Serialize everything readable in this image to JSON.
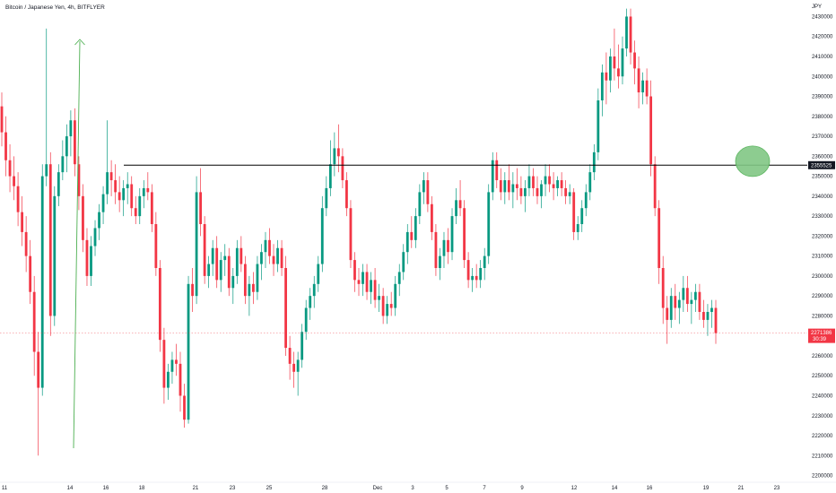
{
  "chart_data": {
    "type": "candlestick",
    "title": "Bitcoin / Japanese Yen, 4h, BITFLYER",
    "currency": "JPY",
    "y_ticks": [
      2200000,
      2210000,
      2220000,
      2230000,
      2240000,
      2250000,
      2260000,
      2270000,
      2280000,
      2290000,
      2300000,
      2310000,
      2320000,
      2330000,
      2340000,
      2350000,
      2360000,
      2370000,
      2380000,
      2390000,
      2400000,
      2410000,
      2420000,
      2430000
    ],
    "ylim": [
      2198000,
      2436500
    ],
    "x_ticks": [
      "11",
      "14",
      "16",
      "18",
      "21",
      "23",
      "25",
      "28",
      "Dec",
      "3",
      "5",
      "7",
      "9",
      "12",
      "14",
      "16",
      "19",
      "21",
      "23"
    ],
    "horizontal_line": {
      "value": 2355525,
      "label": "2355525",
      "color": "#000000"
    },
    "last_price": {
      "value": 2271386,
      "label": "2271386",
      "countdown": "30:39",
      "color": "#f23645"
    },
    "highlight_marker": {
      "shape": "ellipse",
      "color": "#81c784",
      "value": 2357500
    },
    "arrow_marker": {
      "direction": "up",
      "color": "#4caf50"
    },
    "colors": {
      "up": "#089981",
      "down": "#f23645"
    },
    "ohlc": [
      [
        2385000,
        2392000,
        2365000,
        2372000
      ],
      [
        2372000,
        2380000,
        2350000,
        2358000
      ],
      [
        2358000,
        2366000,
        2342000,
        2350000
      ],
      [
        2350000,
        2360000,
        2338000,
        2345000
      ],
      [
        2345000,
        2352000,
        2325000,
        2332000
      ],
      [
        2332000,
        2340000,
        2315000,
        2322000
      ],
      [
        2322000,
        2330000,
        2302000,
        2310000
      ],
      [
        2310000,
        2318000,
        2286000,
        2292000
      ],
      [
        2292000,
        2300000,
        2250000,
        2262000
      ],
      [
        2262000,
        2272000,
        2210000,
        2244000
      ],
      [
        2244000,
        2356000,
        2240000,
        2350000
      ],
      [
        2350000,
        2424000,
        2345000,
        2356000
      ],
      [
        2356000,
        2362000,
        2270000,
        2280000
      ],
      [
        2280000,
        2345000,
        2275000,
        2340000
      ],
      [
        2340000,
        2356000,
        2335000,
        2352000
      ],
      [
        2352000,
        2368000,
        2348000,
        2360000
      ],
      [
        2360000,
        2376000,
        2352000,
        2370000
      ],
      [
        2370000,
        2383000,
        2360000,
        2378000
      ],
      [
        2378000,
        2384000,
        2350000,
        2356000
      ],
      [
        2356000,
        2360000,
        2333000,
        2340000
      ],
      [
        2340000,
        2346000,
        2312000,
        2318000
      ],
      [
        2318000,
        2324000,
        2295000,
        2300000
      ],
      [
        2300000,
        2320000,
        2295000,
        2315000
      ],
      [
        2315000,
        2328000,
        2310000,
        2324000
      ],
      [
        2324000,
        2336000,
        2318000,
        2332000
      ],
      [
        2332000,
        2345000,
        2326000,
        2341000
      ],
      [
        2341000,
        2378000,
        2336000,
        2352000
      ],
      [
        2352000,
        2358000,
        2340000,
        2348000
      ],
      [
        2348000,
        2356000,
        2336000,
        2342000
      ],
      [
        2342000,
        2350000,
        2332000,
        2338000
      ],
      [
        2338000,
        2348000,
        2330000,
        2344000
      ],
      [
        2344000,
        2352000,
        2336000,
        2346000
      ],
      [
        2346000,
        2350000,
        2330000,
        2334000
      ],
      [
        2334000,
        2340000,
        2326000,
        2330000
      ],
      [
        2330000,
        2344000,
        2326000,
        2340000
      ],
      [
        2340000,
        2348000,
        2334000,
        2344000
      ],
      [
        2344000,
        2352000,
        2338000,
        2342000
      ],
      [
        2342000,
        2346000,
        2322000,
        2326000
      ],
      [
        2326000,
        2332000,
        2300000,
        2304000
      ],
      [
        2304000,
        2308000,
        2262000,
        2268000
      ],
      [
        2268000,
        2274000,
        2236000,
        2244000
      ],
      [
        2244000,
        2256000,
        2238000,
        2252000
      ],
      [
        2252000,
        2262000,
        2246000,
        2258000
      ],
      [
        2258000,
        2266000,
        2250000,
        2256000
      ],
      [
        2256000,
        2262000,
        2232000,
        2240000
      ],
      [
        2240000,
        2246000,
        2224000,
        2228000
      ],
      [
        2228000,
        2300000,
        2226000,
        2296000
      ],
      [
        2296000,
        2304000,
        2282000,
        2290000
      ],
      [
        2290000,
        2350000,
        2286000,
        2342000
      ],
      [
        2342000,
        2354000,
        2320000,
        2326000
      ],
      [
        2326000,
        2330000,
        2296000,
        2300000
      ],
      [
        2300000,
        2310000,
        2294000,
        2306000
      ],
      [
        2306000,
        2318000,
        2300000,
        2314000
      ],
      [
        2314000,
        2320000,
        2294000,
        2298000
      ],
      [
        2298000,
        2312000,
        2292000,
        2308000
      ],
      [
        2308000,
        2316000,
        2300000,
        2310000
      ],
      [
        2310000,
        2314000,
        2290000,
        2294000
      ],
      [
        2294000,
        2304000,
        2286000,
        2300000
      ],
      [
        2300000,
        2318000,
        2296000,
        2314000
      ],
      [
        2314000,
        2320000,
        2302000,
        2306000
      ],
      [
        2306000,
        2310000,
        2286000,
        2290000
      ],
      [
        2290000,
        2300000,
        2280000,
        2296000
      ],
      [
        2296000,
        2302000,
        2286000,
        2292000
      ],
      [
        2292000,
        2310000,
        2288000,
        2306000
      ],
      [
        2306000,
        2316000,
        2298000,
        2312000
      ],
      [
        2312000,
        2322000,
        2304000,
        2318000
      ],
      [
        2318000,
        2324000,
        2306000,
        2310000
      ],
      [
        2310000,
        2316000,
        2300000,
        2306000
      ],
      [
        2306000,
        2318000,
        2302000,
        2314000
      ],
      [
        2314000,
        2318000,
        2300000,
        2304000
      ],
      [
        2304000,
        2310000,
        2260000,
        2264000
      ],
      [
        2264000,
        2270000,
        2248000,
        2256000
      ],
      [
        2256000,
        2262000,
        2244000,
        2252000
      ],
      [
        2252000,
        2262000,
        2240000,
        2258000
      ],
      [
        2258000,
        2276000,
        2254000,
        2272000
      ],
      [
        2272000,
        2288000,
        2268000,
        2284000
      ],
      [
        2284000,
        2294000,
        2278000,
        2290000
      ],
      [
        2290000,
        2300000,
        2284000,
        2296000
      ],
      [
        2296000,
        2310000,
        2292000,
        2306000
      ],
      [
        2306000,
        2340000,
        2302000,
        2334000
      ],
      [
        2334000,
        2350000,
        2330000,
        2344000
      ],
      [
        2344000,
        2368000,
        2340000,
        2356000
      ],
      [
        2356000,
        2372000,
        2350000,
        2364000
      ],
      [
        2364000,
        2376000,
        2352000,
        2360000
      ],
      [
        2360000,
        2364000,
        2344000,
        2348000
      ],
      [
        2348000,
        2352000,
        2330000,
        2334000
      ],
      [
        2334000,
        2338000,
        2304000,
        2308000
      ],
      [
        2308000,
        2312000,
        2292000,
        2298000
      ],
      [
        2298000,
        2304000,
        2290000,
        2296000
      ],
      [
        2296000,
        2306000,
        2290000,
        2302000
      ],
      [
        2302000,
        2306000,
        2288000,
        2292000
      ],
      [
        2292000,
        2302000,
        2286000,
        2298000
      ],
      [
        2298000,
        2304000,
        2284000,
        2288000
      ],
      [
        2288000,
        2296000,
        2282000,
        2290000
      ],
      [
        2290000,
        2294000,
        2276000,
        2280000
      ],
      [
        2280000,
        2290000,
        2276000,
        2286000
      ],
      [
        2286000,
        2292000,
        2280000,
        2284000
      ],
      [
        2284000,
        2300000,
        2280000,
        2296000
      ],
      [
        2296000,
        2306000,
        2290000,
        2302000
      ],
      [
        2302000,
        2316000,
        2298000,
        2312000
      ],
      [
        2312000,
        2326000,
        2306000,
        2322000
      ],
      [
        2322000,
        2330000,
        2314000,
        2318000
      ],
      [
        2318000,
        2334000,
        2314000,
        2330000
      ],
      [
        2330000,
        2346000,
        2326000,
        2342000
      ],
      [
        2342000,
        2352000,
        2336000,
        2348000
      ],
      [
        2348000,
        2352000,
        2332000,
        2336000
      ],
      [
        2336000,
        2340000,
        2318000,
        2322000
      ],
      [
        2322000,
        2326000,
        2300000,
        2304000
      ],
      [
        2304000,
        2314000,
        2298000,
        2310000
      ],
      [
        2310000,
        2322000,
        2304000,
        2318000
      ],
      [
        2318000,
        2324000,
        2306000,
        2312000
      ],
      [
        2312000,
        2334000,
        2308000,
        2330000
      ],
      [
        2330000,
        2344000,
        2326000,
        2338000
      ],
      [
        2338000,
        2348000,
        2330000,
        2334000
      ],
      [
        2334000,
        2338000,
        2304000,
        2308000
      ],
      [
        2308000,
        2312000,
        2294000,
        2298000
      ],
      [
        2298000,
        2304000,
        2292000,
        2300000
      ],
      [
        2300000,
        2306000,
        2294000,
        2298000
      ],
      [
        2298000,
        2308000,
        2294000,
        2304000
      ],
      [
        2304000,
        2314000,
        2298000,
        2310000
      ],
      [
        2310000,
        2346000,
        2306000,
        2342000
      ],
      [
        2342000,
        2362000,
        2338000,
        2358000
      ],
      [
        2358000,
        2362000,
        2344000,
        2348000
      ],
      [
        2348000,
        2354000,
        2338000,
        2342000
      ],
      [
        2342000,
        2352000,
        2336000,
        2348000
      ],
      [
        2348000,
        2356000,
        2338000,
        2342000
      ],
      [
        2342000,
        2352000,
        2334000,
        2346000
      ],
      [
        2346000,
        2354000,
        2338000,
        2344000
      ],
      [
        2344000,
        2350000,
        2336000,
        2340000
      ],
      [
        2340000,
        2348000,
        2332000,
        2344000
      ],
      [
        2344000,
        2356000,
        2340000,
        2350000
      ],
      [
        2350000,
        2354000,
        2340000,
        2344000
      ],
      [
        2344000,
        2350000,
        2336000,
        2340000
      ],
      [
        2340000,
        2348000,
        2334000,
        2346000
      ],
      [
        2346000,
        2356000,
        2340000,
        2350000
      ],
      [
        2350000,
        2356000,
        2342000,
        2346000
      ],
      [
        2346000,
        2352000,
        2338000,
        2344000
      ],
      [
        2344000,
        2350000,
        2340000,
        2348000
      ],
      [
        2348000,
        2352000,
        2340000,
        2344000
      ],
      [
        2344000,
        2348000,
        2336000,
        2340000
      ],
      [
        2340000,
        2346000,
        2336000,
        2342000
      ],
      [
        2342000,
        2344000,
        2318000,
        2322000
      ],
      [
        2322000,
        2330000,
        2318000,
        2326000
      ],
      [
        2326000,
        2338000,
        2322000,
        2334000
      ],
      [
        2334000,
        2346000,
        2330000,
        2342000
      ],
      [
        2342000,
        2356000,
        2338000,
        2352000
      ],
      [
        2352000,
        2366000,
        2348000,
        2362000
      ],
      [
        2362000,
        2394000,
        2358000,
        2388000
      ],
      [
        2388000,
        2406000,
        2380000,
        2402000
      ],
      [
        2402000,
        2412000,
        2386000,
        2398000
      ],
      [
        2398000,
        2414000,
        2392000,
        2410000
      ],
      [
        2410000,
        2424000,
        2398000,
        2404000
      ],
      [
        2404000,
        2416000,
        2394000,
        2400000
      ],
      [
        2400000,
        2420000,
        2396000,
        2414000
      ],
      [
        2414000,
        2434000,
        2410000,
        2430000
      ],
      [
        2430000,
        2434000,
        2406000,
        2412000
      ],
      [
        2412000,
        2418000,
        2396000,
        2404000
      ],
      [
        2404000,
        2410000,
        2384000,
        2392000
      ],
      [
        2392000,
        2402000,
        2386000,
        2398000
      ],
      [
        2398000,
        2404000,
        2386000,
        2390000
      ],
      [
        2390000,
        2398000,
        2350000,
        2356000
      ],
      [
        2356000,
        2360000,
        2330000,
        2334000
      ],
      [
        2334000,
        2338000,
        2296000,
        2304000
      ],
      [
        2304000,
        2310000,
        2276000,
        2284000
      ],
      [
        2284000,
        2290000,
        2266000,
        2278000
      ],
      [
        2278000,
        2294000,
        2274000,
        2290000
      ],
      [
        2290000,
        2296000,
        2278000,
        2284000
      ],
      [
        2284000,
        2292000,
        2276000,
        2288000
      ],
      [
        2288000,
        2300000,
        2282000,
        2294000
      ],
      [
        2294000,
        2300000,
        2282000,
        2286000
      ],
      [
        2286000,
        2292000,
        2276000,
        2288000
      ],
      [
        2288000,
        2296000,
        2282000,
        2292000
      ],
      [
        2292000,
        2296000,
        2278000,
        2282000
      ],
      [
        2282000,
        2288000,
        2274000,
        2278000
      ],
      [
        2278000,
        2286000,
        2270000,
        2282000
      ],
      [
        2282000,
        2288000,
        2274000,
        2284000
      ],
      [
        2284000,
        2288000,
        2266000,
        2271386
      ]
    ]
  }
}
